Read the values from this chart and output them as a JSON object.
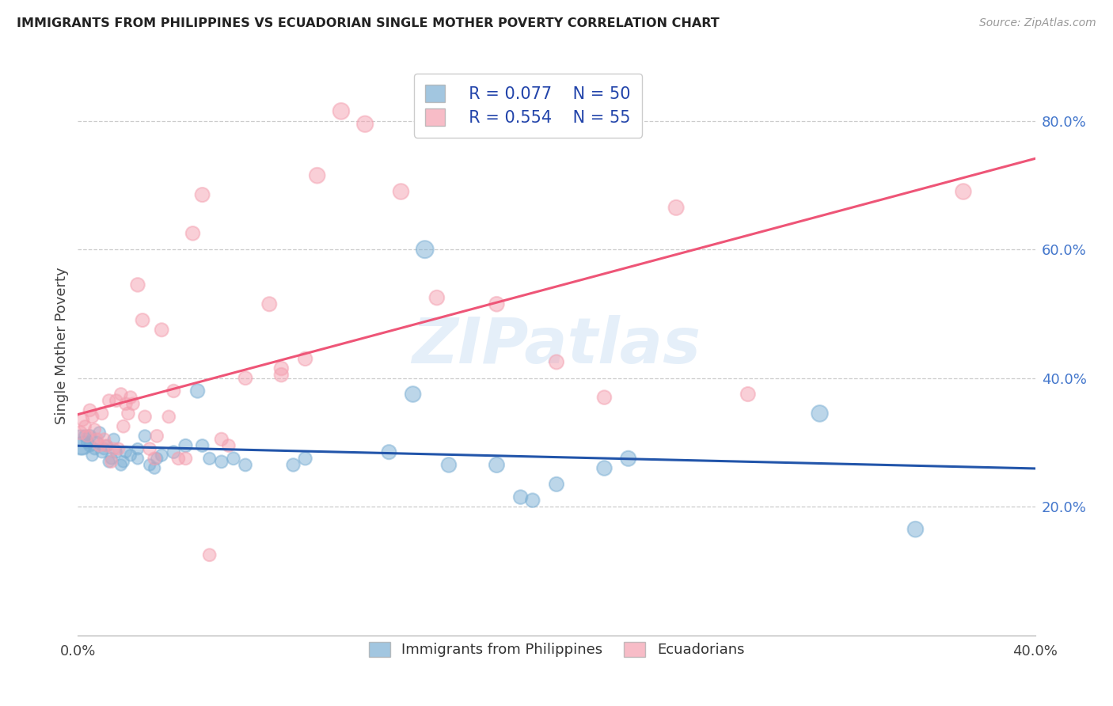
{
  "title": "IMMIGRANTS FROM PHILIPPINES VS ECUADORIAN SINGLE MOTHER POVERTY CORRELATION CHART",
  "source": "Source: ZipAtlas.com",
  "ylabel": "Single Mother Poverty",
  "xlim": [
    0.0,
    0.4
  ],
  "ylim": [
    0.0,
    0.9
  ],
  "x_tick_positions": [
    0.0,
    0.05,
    0.1,
    0.15,
    0.2,
    0.25,
    0.3,
    0.35,
    0.4
  ],
  "x_tick_labels": [
    "0.0%",
    "",
    "",
    "",
    "",
    "",
    "",
    "",
    "40.0%"
  ],
  "y_tick_positions": [
    0.2,
    0.4,
    0.6,
    0.8
  ],
  "y_tick_labels": [
    "20.0%",
    "40.0%",
    "60.0%",
    "80.0%"
  ],
  "legend_blue_r": "R = 0.077",
  "legend_blue_n": "N = 50",
  "legend_pink_r": "R = 0.554",
  "legend_pink_n": "N = 55",
  "blue_color": "#7BAFD4",
  "pink_color": "#F4A0B0",
  "blue_line_color": "#2255AA",
  "pink_line_color": "#EE5577",
  "watermark": "ZIPatlas",
  "blue_points": [
    [
      0.001,
      0.3
    ],
    [
      0.002,
      0.295
    ],
    [
      0.003,
      0.31
    ],
    [
      0.004,
      0.3
    ],
    [
      0.005,
      0.31
    ],
    [
      0.005,
      0.295
    ],
    [
      0.006,
      0.28
    ],
    [
      0.007,
      0.29
    ],
    [
      0.008,
      0.3
    ],
    [
      0.009,
      0.315
    ],
    [
      0.01,
      0.285
    ],
    [
      0.011,
      0.29
    ],
    [
      0.012,
      0.295
    ],
    [
      0.013,
      0.27
    ],
    [
      0.014,
      0.275
    ],
    [
      0.015,
      0.305
    ],
    [
      0.016,
      0.285
    ],
    [
      0.018,
      0.265
    ],
    [
      0.019,
      0.27
    ],
    [
      0.02,
      0.285
    ],
    [
      0.022,
      0.28
    ],
    [
      0.025,
      0.29
    ],
    [
      0.025,
      0.275
    ],
    [
      0.028,
      0.31
    ],
    [
      0.03,
      0.265
    ],
    [
      0.032,
      0.26
    ],
    [
      0.033,
      0.275
    ],
    [
      0.035,
      0.28
    ],
    [
      0.04,
      0.285
    ],
    [
      0.045,
      0.295
    ],
    [
      0.05,
      0.38
    ],
    [
      0.052,
      0.295
    ],
    [
      0.055,
      0.275
    ],
    [
      0.06,
      0.27
    ],
    [
      0.065,
      0.275
    ],
    [
      0.07,
      0.265
    ],
    [
      0.09,
      0.265
    ],
    [
      0.095,
      0.275
    ],
    [
      0.13,
      0.285
    ],
    [
      0.14,
      0.375
    ],
    [
      0.145,
      0.6
    ],
    [
      0.155,
      0.265
    ],
    [
      0.175,
      0.265
    ],
    [
      0.185,
      0.215
    ],
    [
      0.19,
      0.21
    ],
    [
      0.2,
      0.235
    ],
    [
      0.22,
      0.26
    ],
    [
      0.23,
      0.275
    ],
    [
      0.31,
      0.345
    ],
    [
      0.35,
      0.165
    ]
  ],
  "pink_points": [
    [
      0.001,
      0.315
    ],
    [
      0.002,
      0.335
    ],
    [
      0.003,
      0.325
    ],
    [
      0.004,
      0.31
    ],
    [
      0.005,
      0.35
    ],
    [
      0.006,
      0.34
    ],
    [
      0.007,
      0.32
    ],
    [
      0.008,
      0.305
    ],
    [
      0.009,
      0.295
    ],
    [
      0.01,
      0.345
    ],
    [
      0.011,
      0.305
    ],
    [
      0.012,
      0.295
    ],
    [
      0.013,
      0.365
    ],
    [
      0.014,
      0.27
    ],
    [
      0.015,
      0.29
    ],
    [
      0.016,
      0.365
    ],
    [
      0.017,
      0.29
    ],
    [
      0.018,
      0.375
    ],
    [
      0.019,
      0.325
    ],
    [
      0.02,
      0.36
    ],
    [
      0.021,
      0.345
    ],
    [
      0.022,
      0.37
    ],
    [
      0.023,
      0.36
    ],
    [
      0.025,
      0.545
    ],
    [
      0.027,
      0.49
    ],
    [
      0.028,
      0.34
    ],
    [
      0.03,
      0.29
    ],
    [
      0.032,
      0.275
    ],
    [
      0.033,
      0.31
    ],
    [
      0.035,
      0.475
    ],
    [
      0.038,
      0.34
    ],
    [
      0.04,
      0.38
    ],
    [
      0.042,
      0.275
    ],
    [
      0.045,
      0.275
    ],
    [
      0.048,
      0.625
    ],
    [
      0.052,
      0.685
    ],
    [
      0.055,
      0.125
    ],
    [
      0.06,
      0.305
    ],
    [
      0.063,
      0.295
    ],
    [
      0.07,
      0.4
    ],
    [
      0.08,
      0.515
    ],
    [
      0.085,
      0.415
    ],
    [
      0.085,
      0.405
    ],
    [
      0.095,
      0.43
    ],
    [
      0.1,
      0.715
    ],
    [
      0.11,
      0.815
    ],
    [
      0.12,
      0.795
    ],
    [
      0.135,
      0.69
    ],
    [
      0.15,
      0.525
    ],
    [
      0.175,
      0.515
    ],
    [
      0.2,
      0.425
    ],
    [
      0.22,
      0.37
    ],
    [
      0.25,
      0.665
    ],
    [
      0.28,
      0.375
    ],
    [
      0.37,
      0.69
    ]
  ],
  "blue_point_sizes": [
    500,
    280,
    120,
    120,
    130,
    120,
    110,
    110,
    120,
    120,
    110,
    110,
    110,
    110,
    110,
    110,
    110,
    110,
    110,
    110,
    110,
    110,
    110,
    120,
    110,
    110,
    110,
    120,
    130,
    140,
    160,
    130,
    120,
    130,
    130,
    130,
    140,
    140,
    170,
    200,
    250,
    180,
    190,
    160,
    160,
    170,
    180,
    190,
    220,
    200
  ],
  "pink_point_sizes": [
    150,
    130,
    120,
    120,
    130,
    130,
    120,
    120,
    120,
    130,
    120,
    120,
    130,
    120,
    120,
    130,
    120,
    130,
    130,
    130,
    130,
    130,
    130,
    160,
    150,
    130,
    130,
    130,
    130,
    150,
    130,
    140,
    130,
    130,
    160,
    170,
    130,
    140,
    130,
    150,
    170,
    160,
    160,
    160,
    200,
    220,
    215,
    200,
    180,
    180,
    170,
    160,
    190,
    170,
    200
  ],
  "background_color": "#FFFFFF",
  "grid_color": "#CCCCCC"
}
